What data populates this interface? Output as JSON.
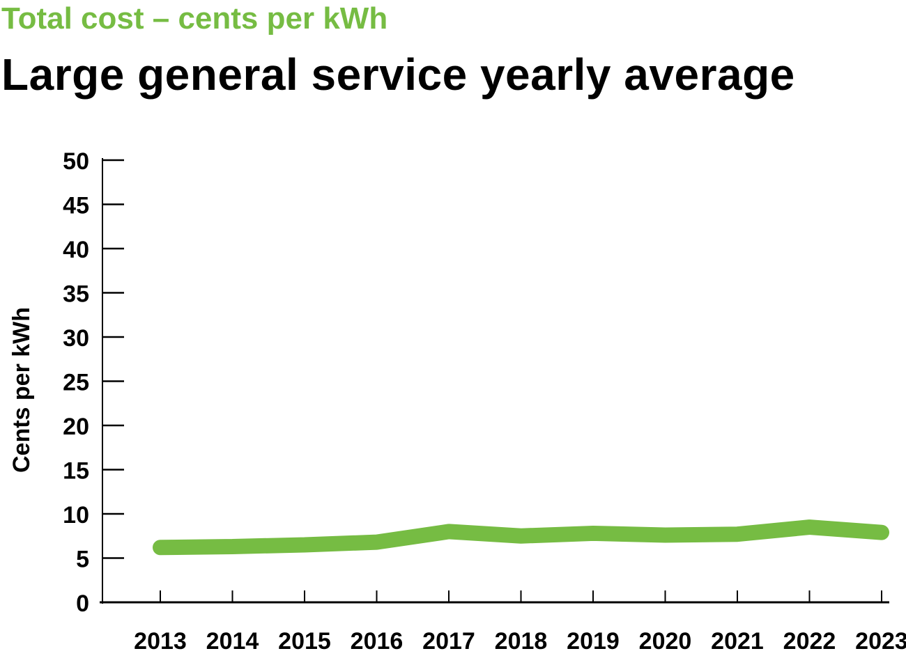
{
  "chart_data": {
    "type": "line",
    "subtitle": "Total cost – cents per kWh",
    "title": "Large general service yearly average",
    "xlabel": "",
    "ylabel": "Cents per kWh",
    "ylim": [
      0,
      50
    ],
    "yticks": [
      "0",
      "5",
      "10",
      "15",
      "20",
      "25",
      "30",
      "35",
      "40",
      "45",
      "50"
    ],
    "categories": [
      "2013",
      "2014",
      "2015",
      "2016",
      "2017",
      "2018",
      "2019",
      "2020",
      "2021",
      "2022",
      "2023"
    ],
    "series": [
      {
        "values": [
          6.2,
          6.3,
          6.5,
          6.8,
          8.0,
          7.5,
          7.8,
          7.6,
          7.7,
          8.5,
          7.9
        ],
        "color": "#76bc43"
      }
    ],
    "grid": false
  }
}
